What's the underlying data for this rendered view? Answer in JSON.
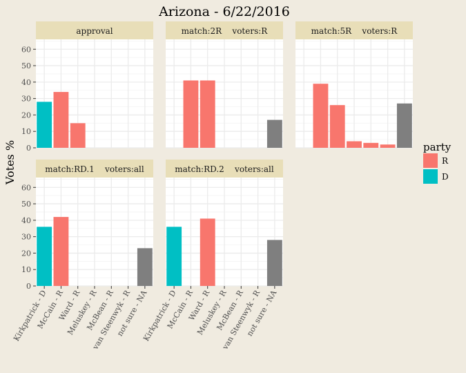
{
  "title": "Arizona - 6/22/2016",
  "ylabel": "Votes %",
  "legend": {
    "title": "party",
    "entries": [
      {
        "label": "R",
        "color": "#f8766d"
      },
      {
        "label": "D",
        "color": "#00bfc4"
      }
    ]
  },
  "colors": {
    "R": "#f8766d",
    "D": "#00bfc4",
    "NA": "#7f7f7f",
    "background": "#f0ebe0",
    "strip": "#e8deb8",
    "panel": "#ffffff",
    "grid": "#ebebeb"
  },
  "chart_data": {
    "type": "bar",
    "categories": [
      "Kirkpatrick - D",
      "McCain - R",
      "Ward - R",
      "Meluskey - R",
      "McBean - R",
      "van Steenwyk - R",
      "not sure - NA"
    ],
    "category_party": [
      "D",
      "R",
      "R",
      "R",
      "R",
      "R",
      "NA"
    ],
    "yticks": [
      0,
      10,
      20,
      30,
      40,
      50,
      60
    ],
    "ylim": [
      0,
      66
    ],
    "grid": true,
    "legend_position": "right",
    "panels": [
      {
        "name": "approval",
        "values": [
          28,
          34,
          15,
          null,
          null,
          null,
          null
        ]
      },
      {
        "name": "match:2R    voters:R",
        "values": [
          null,
          41,
          41,
          null,
          null,
          null,
          17
        ]
      },
      {
        "name": "match:5R    voters:R",
        "values": [
          null,
          39,
          26,
          4,
          3,
          2,
          27
        ]
      },
      {
        "name": "match:RD.1    voters:all",
        "values": [
          36,
          42,
          null,
          null,
          null,
          null,
          23
        ]
      },
      {
        "name": "match:RD.2    voters:all",
        "values": [
          36,
          null,
          41,
          null,
          null,
          null,
          28
        ]
      }
    ]
  }
}
